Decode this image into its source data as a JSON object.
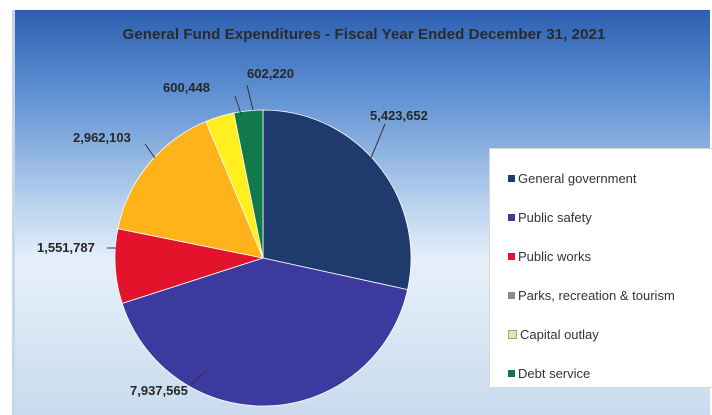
{
  "chart_data": {
    "type": "pie",
    "title": "General Fund Expenditures - Fiscal Year Ended December 31, 2021",
    "categories": [
      "General government",
      "Public safety",
      "Public works",
      "Parks, recreation & tourism",
      "Capital outlay",
      "Debt service"
    ],
    "values": [
      5423652,
      7937565,
      1551787,
      2962103,
      600448,
      602220
    ],
    "data_labels": [
      "5,423,652",
      "7,937,565",
      "1,551,787",
      "2,962,103",
      "600,448",
      "602,220"
    ],
    "colors": [
      "#1f3b6e",
      "#3c3a9e",
      "#e3132b",
      "#ffb31a",
      "#ffef1f",
      "#127a4a"
    ],
    "legend_colors": [
      "#1f3b6e",
      "#3c3a9e",
      "#e3132b",
      "#8a8a8a",
      "#d9ecb0",
      "#127a4a"
    ],
    "legend_position": "right"
  }
}
